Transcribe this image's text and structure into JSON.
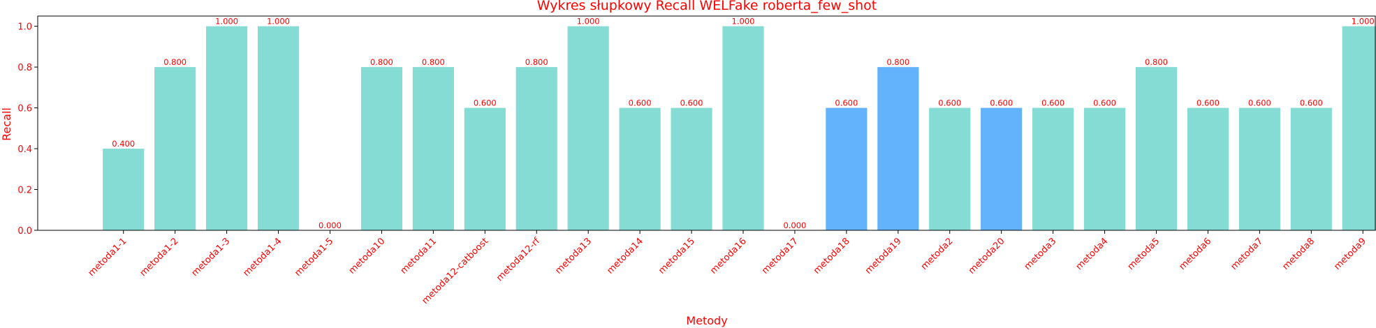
{
  "chart_data": {
    "type": "bar",
    "title": "Wykres słupkowy Recall WELFake roberta_few_shot",
    "xlabel": "Metody",
    "ylabel": "Recall",
    "ylim": [
      0,
      1.05
    ],
    "yticks": [
      0.0,
      0.2,
      0.4,
      0.6,
      0.8,
      1.0
    ],
    "ytick_labels": [
      "0.0",
      "0.2",
      "0.4",
      "0.6",
      "0.8",
      "1.0"
    ],
    "grid": false,
    "categories": [
      "metoda1-1",
      "metoda1-2",
      "metoda1-3",
      "metoda1-4",
      "metoda1-5",
      "metoda10",
      "metoda11",
      "metoda12-catboost",
      "metoda12-rf",
      "metoda13",
      "metoda14",
      "metoda15",
      "metoda16",
      "metoda17",
      "metoda18",
      "metoda19",
      "metoda2",
      "metoda20",
      "metoda3",
      "metoda4",
      "metoda5",
      "metoda6",
      "metoda7",
      "metoda8",
      "metoda9"
    ],
    "values": [
      0.4,
      0.8,
      1.0,
      1.0,
      0.0,
      0.8,
      0.8,
      0.6,
      0.8,
      1.0,
      0.6,
      0.6,
      1.0,
      0.0,
      0.6,
      0.8,
      0.6,
      0.6,
      0.6,
      0.6,
      0.8,
      0.6,
      0.6,
      0.6,
      1.0
    ],
    "value_labels": [
      "0.400",
      "0.800",
      "1.000",
      "1.000",
      "0.000",
      "0.800",
      "0.800",
      "0.600",
      "0.800",
      "1.000",
      "0.600",
      "0.600",
      "1.000",
      "0.000",
      "0.600",
      "0.800",
      "0.600",
      "0.600",
      "0.600",
      "0.600",
      "0.800",
      "0.600",
      "0.600",
      "0.600",
      "1.000"
    ],
    "highlighted": [
      "metoda18",
      "metoda19",
      "metoda20"
    ]
  },
  "colors": {
    "bar": "#84dcd5",
    "bar_highlight": "#62b2fc",
    "text": "#ff0000",
    "axis": "#000000"
  }
}
